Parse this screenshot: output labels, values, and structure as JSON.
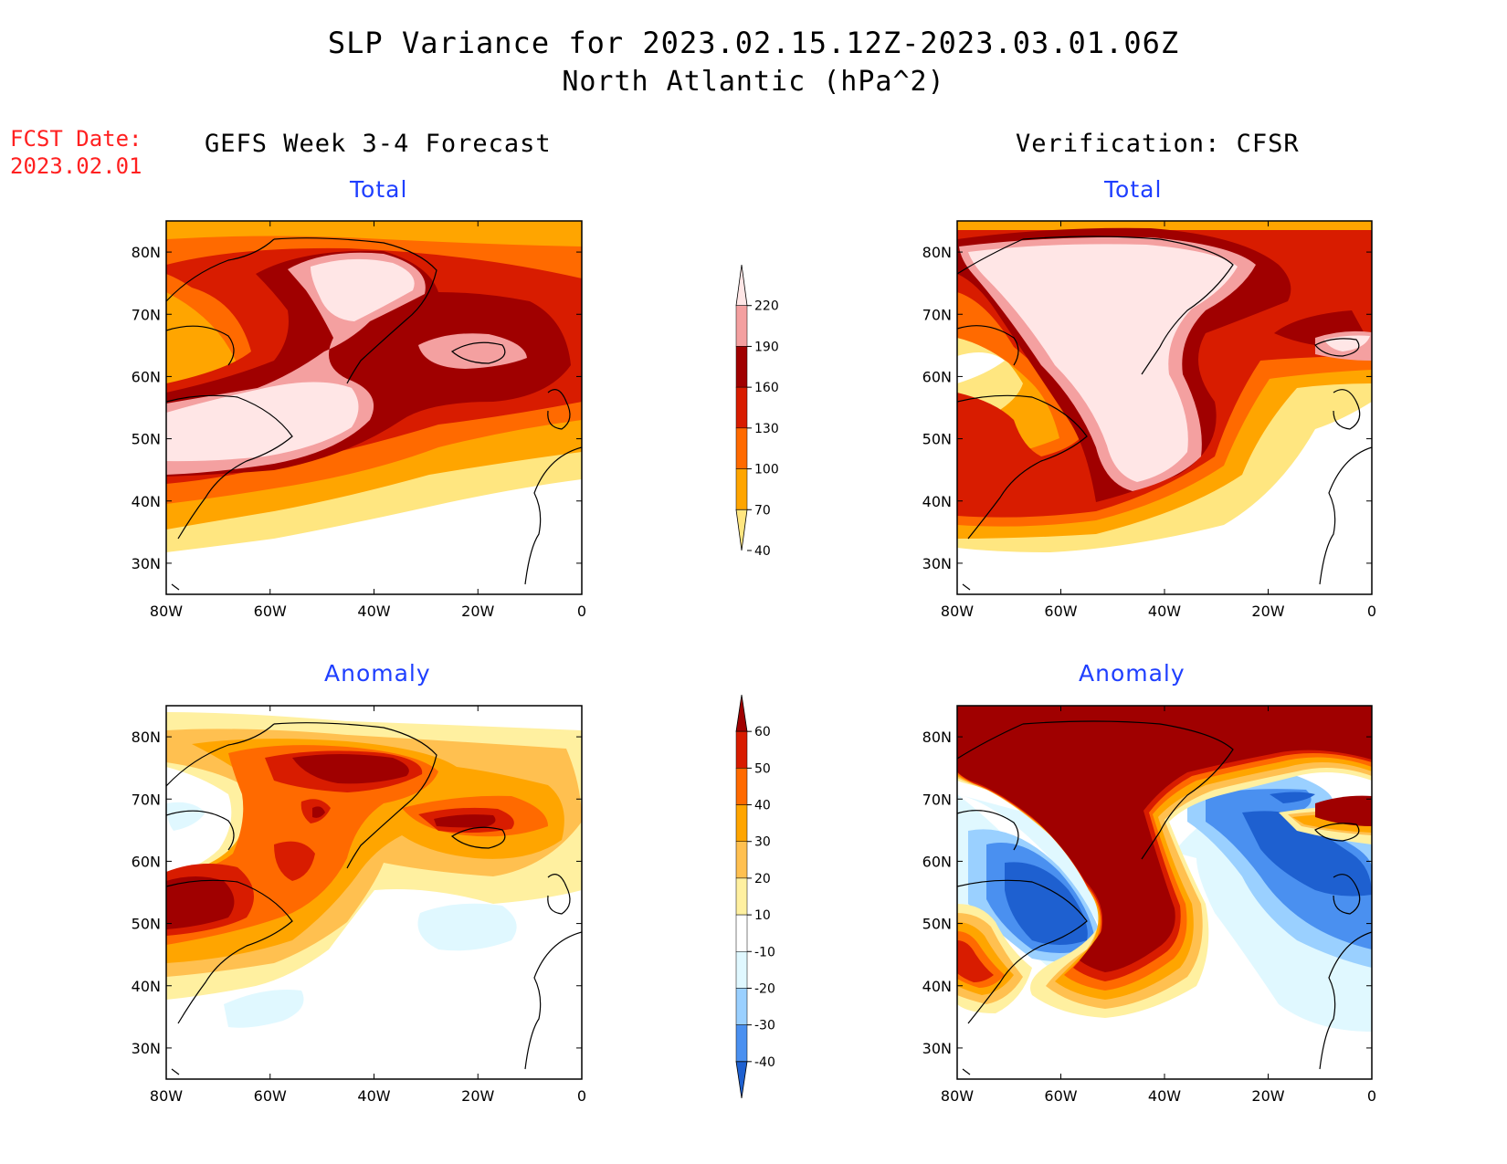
{
  "title": "SLP Variance for 2023.02.15.12Z-2023.03.01.06Z",
  "subtitle": "North Atlantic (hPa^2)",
  "forecast_date": {
    "label": "FCST Date:",
    "value": "2023.02.01"
  },
  "columns": {
    "left": "GEFS Week 3-4 Forecast",
    "right": "Verification: CFSR"
  },
  "panel_titles": {
    "total": "Total",
    "anomaly": "Anomaly"
  },
  "map": {
    "lat_ticks": [
      "80N",
      "70N",
      "60N",
      "50N",
      "40N",
      "30N"
    ],
    "lon_ticks": [
      "80W",
      "60W",
      "40W",
      "20W",
      "0"
    ],
    "lat_range": [
      25,
      85
    ],
    "lon_range": [
      -80,
      0
    ]
  },
  "colorbars": {
    "total": {
      "labels": [
        "220",
        "190",
        "160",
        "130",
        "100",
        "70",
        "40"
      ],
      "colors": [
        "#ffe6e6",
        "#f4a0a0",
        "#a00000",
        "#d81c00",
        "#ff6a00",
        "#ffa500",
        "#ffe680"
      ]
    },
    "anomaly": {
      "labels": [
        "60",
        "50",
        "40",
        "30",
        "20",
        "10",
        "-10",
        "-20",
        "-30",
        "-40"
      ],
      "colors": [
        "#a00000",
        "#d81c00",
        "#ff6a00",
        "#ffa500",
        "#ffc050",
        "#fff0a0",
        "#ffffff",
        "#e0f8ff",
        "#9ad0ff",
        "#4a90f0",
        "#1e60d0"
      ]
    }
  }
}
